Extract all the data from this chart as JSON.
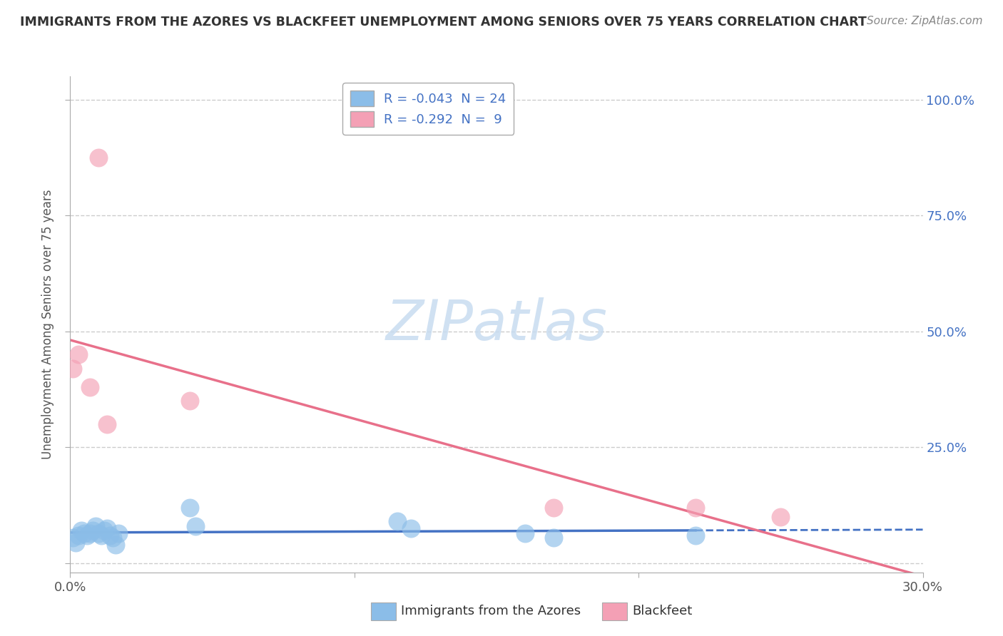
{
  "title": "IMMIGRANTS FROM THE AZORES VS BLACKFEET UNEMPLOYMENT AMONG SENIORS OVER 75 YEARS CORRELATION CHART",
  "source": "Source: ZipAtlas.com",
  "ylabel": "Unemployment Among Seniors over 75 years",
  "xlim": [
    0.0,
    0.3
  ],
  "ylim": [
    -0.02,
    1.05
  ],
  "xticks": [
    0.0,
    0.1,
    0.2,
    0.3
  ],
  "xtick_labels": [
    "0.0%",
    "",
    "",
    "30.0%"
  ],
  "yticks": [
    0.0,
    0.25,
    0.5,
    0.75,
    1.0
  ],
  "ytick_labels_right": [
    "",
    "25.0%",
    "50.0%",
    "75.0%",
    "100.0%"
  ],
  "azores_R": -0.043,
  "azores_N": 24,
  "blackfeet_R": -0.292,
  "blackfeet_N": 9,
  "azores_color": "#8BBDE8",
  "blackfeet_color": "#F4A0B5",
  "azores_line_color": "#4472C4",
  "blackfeet_line_color": "#E8708A",
  "watermark_color": "#C8DCF0",
  "azores_x": [
    0.001,
    0.002,
    0.003,
    0.004,
    0.005,
    0.006,
    0.007,
    0.008,
    0.009,
    0.01,
    0.011,
    0.012,
    0.013,
    0.014,
    0.015,
    0.016,
    0.017,
    0.042,
    0.044,
    0.115,
    0.12,
    0.16,
    0.17,
    0.22
  ],
  "azores_y": [
    0.055,
    0.045,
    0.06,
    0.07,
    0.065,
    0.06,
    0.065,
    0.07,
    0.08,
    0.065,
    0.06,
    0.07,
    0.075,
    0.06,
    0.055,
    0.04,
    0.065,
    0.12,
    0.08,
    0.09,
    0.075,
    0.065,
    0.055,
    0.06
  ],
  "blackfeet_x": [
    0.001,
    0.003,
    0.007,
    0.01,
    0.013,
    0.042,
    0.17,
    0.22,
    0.25
  ],
  "blackfeet_y": [
    0.42,
    0.45,
    0.38,
    0.875,
    0.3,
    0.35,
    0.12,
    0.12,
    0.1
  ],
  "background_color": "#FFFFFF",
  "grid_color": "#CCCCCC",
  "legend_label_azores": "R = -0.043  N = 24",
  "legend_label_blackfeet": "R = -0.292  N =  9",
  "bottom_legend_azores": "Immigrants from the Azores",
  "bottom_legend_blackfeet": "Blackfeet"
}
